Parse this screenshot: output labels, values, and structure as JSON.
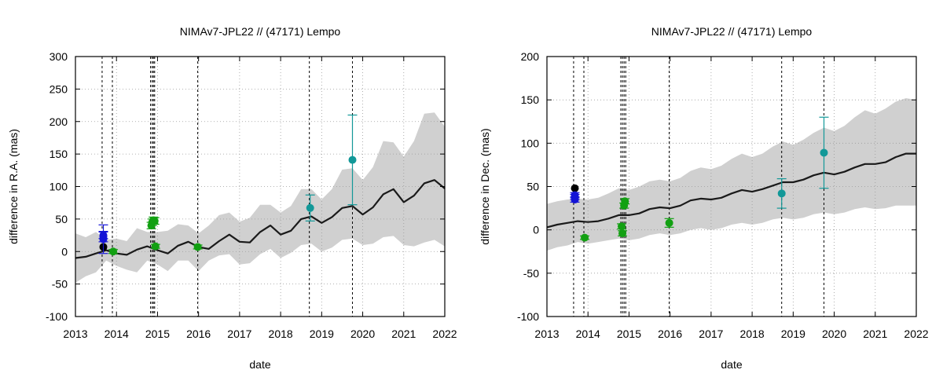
{
  "chart_data": [
    {
      "type": "scatter",
      "title": "NIMAv7-JPL22 // (47171) Lempo",
      "xlabel": "date",
      "ylabel": "difference in R.A. (mas)",
      "xlim": [
        2013,
        2022
      ],
      "ylim": [
        -100,
        300
      ],
      "xticks": [
        2013,
        2014,
        2015,
        2016,
        2017,
        2018,
        2019,
        2020,
        2021,
        2022
      ],
      "yticks": [
        -100,
        -50,
        0,
        50,
        100,
        150,
        200,
        250,
        300
      ],
      "grid": true,
      "vlines": [
        13.65,
        13.9,
        14.83,
        14.87,
        14.9,
        14.93,
        15.98,
        18.7,
        19.75
      ],
      "model": {
        "name": "model difference",
        "color": "#1a1a1a",
        "x": [
          2013.0,
          2013.25,
          2013.5,
          2013.75,
          2014.0,
          2014.25,
          2014.5,
          2014.75,
          2015.0,
          2015.25,
          2015.5,
          2015.75,
          2016.0,
          2016.25,
          2016.5,
          2016.75,
          2017.0,
          2017.25,
          2017.5,
          2017.75,
          2018.0,
          2018.25,
          2018.5,
          2018.75,
          2019.0,
          2019.25,
          2019.5,
          2019.75,
          2020.0,
          2020.25,
          2020.5,
          2020.75,
          2021.0,
          2021.25,
          2021.5,
          2021.75,
          2022.0
        ],
        "y": [
          -10,
          -8,
          -3,
          2,
          -3,
          -5,
          3,
          8,
          2,
          -3,
          9,
          15,
          7,
          4,
          16,
          26,
          15,
          14,
          30,
          40,
          26,
          32,
          50,
          54,
          44,
          53,
          67,
          70,
          57,
          68,
          88,
          96,
          76,
          86,
          105,
          110,
          97
        ]
      },
      "band": {
        "name": "uncertainty",
        "color": "#d0d0d0",
        "x": [
          2013.0,
          2013.25,
          2013.5,
          2013.75,
          2014.0,
          2014.25,
          2014.5,
          2014.75,
          2015.0,
          2015.25,
          2015.5,
          2015.75,
          2016.0,
          2016.25,
          2016.5,
          2016.75,
          2017.0,
          2017.25,
          2017.5,
          2017.75,
          2018.0,
          2018.25,
          2018.5,
          2018.75,
          2019.0,
          2019.25,
          2019.5,
          2019.75,
          2020.0,
          2020.25,
          2020.5,
          2020.75,
          2021.0,
          2021.25,
          2021.5,
          2021.75,
          2022.0
        ],
        "upper": [
          28,
          22,
          30,
          18,
          20,
          16,
          36,
          30,
          30,
          32,
          42,
          40,
          28,
          40,
          56,
          60,
          46,
          52,
          72,
          72,
          60,
          70,
          96,
          96,
          80,
          96,
          126,
          128,
          110,
          130,
          170,
          168,
          146,
          170,
          212,
          214,
          192
        ],
        "lower": [
          -48,
          -38,
          -32,
          -14,
          -22,
          -28,
          -32,
          -14,
          -20,
          -30,
          -14,
          -14,
          -30,
          -14,
          -6,
          -4,
          -20,
          -18,
          -4,
          4,
          -10,
          -2,
          10,
          12,
          0,
          6,
          18,
          20,
          10,
          12,
          22,
          24,
          10,
          8,
          14,
          18,
          8
        ]
      },
      "points": [
        {
          "label": "black",
          "color": "#000000",
          "x": 13.68,
          "y": 7,
          "err": 0
        },
        {
          "label": "blue",
          "color": "#1414d6",
          "x": 13.68,
          "y": 19,
          "err": 22
        },
        {
          "label": "blue",
          "color": "#1414d6",
          "x": 13.68,
          "y": 23,
          "err": 8
        },
        {
          "label": "blue",
          "color": "#1414d6",
          "x": 13.68,
          "y": 25,
          "err": 5
        },
        {
          "label": "green",
          "color": "#12a012",
          "x": 13.92,
          "y": 0,
          "err": 3
        },
        {
          "label": "green",
          "color": "#12a012",
          "x": 14.85,
          "y": 40,
          "err": 5
        },
        {
          "label": "green",
          "color": "#12a012",
          "x": 14.87,
          "y": 45,
          "err": 5
        },
        {
          "label": "green",
          "color": "#12a012",
          "x": 14.9,
          "y": 48,
          "err": 5
        },
        {
          "label": "green",
          "color": "#12a012",
          "x": 14.93,
          "y": 47,
          "err": 5
        },
        {
          "label": "green",
          "color": "#12a012",
          "x": 14.95,
          "y": 8,
          "err": 3
        },
        {
          "label": "green",
          "color": "#12a012",
          "x": 15.98,
          "y": 7,
          "err": 3
        },
        {
          "label": "teal",
          "color": "#129898",
          "x": 18.72,
          "y": 67,
          "err": 20
        },
        {
          "label": "teal",
          "color": "#129898",
          "x": 19.75,
          "y": 141,
          "err": 69
        }
      ]
    },
    {
      "type": "scatter",
      "title": "NIMAv7-JPL22 // (47171) Lempo",
      "xlabel": "date",
      "ylabel": "difference in Dec. (mas)",
      "xlim": [
        2013,
        2022
      ],
      "ylim": [
        -100,
        200
      ],
      "xticks": [
        2013,
        2014,
        2015,
        2016,
        2017,
        2018,
        2019,
        2020,
        2021,
        2022
      ],
      "yticks": [
        -100,
        -50,
        0,
        50,
        100,
        150,
        200
      ],
      "grid": true,
      "vlines": [
        13.65,
        13.9,
        14.8,
        14.84,
        14.88,
        14.92,
        15.98,
        18.72,
        19.75
      ],
      "model": {
        "name": "model difference",
        "color": "#1a1a1a",
        "x": [
          2013.0,
          2013.25,
          2013.5,
          2013.75,
          2014.0,
          2014.25,
          2014.5,
          2014.75,
          2015.0,
          2015.25,
          2015.5,
          2015.75,
          2016.0,
          2016.25,
          2016.5,
          2016.75,
          2017.0,
          2017.25,
          2017.5,
          2017.75,
          2018.0,
          2018.25,
          2018.5,
          2018.75,
          2019.0,
          2019.25,
          2019.5,
          2019.75,
          2020.0,
          2020.25,
          2020.5,
          2020.75,
          2021.0,
          2021.25,
          2021.5,
          2021.75,
          2022.0
        ],
        "y": [
          3,
          6,
          8,
          10,
          9,
          10,
          13,
          17,
          17,
          19,
          24,
          26,
          25,
          28,
          34,
          36,
          35,
          37,
          42,
          46,
          44,
          47,
          51,
          55,
          55,
          58,
          63,
          66,
          64,
          67,
          72,
          76,
          76,
          78,
          84,
          88,
          88
        ]
      },
      "band": {
        "name": "uncertainty",
        "color": "#d0d0d0",
        "x": [
          2013.0,
          2013.25,
          2013.5,
          2013.75,
          2014.0,
          2014.25,
          2014.5,
          2014.75,
          2015.0,
          2015.25,
          2015.5,
          2015.75,
          2016.0,
          2016.25,
          2016.5,
          2016.75,
          2017.0,
          2017.25,
          2017.5,
          2017.75,
          2018.0,
          2018.25,
          2018.5,
          2018.75,
          2019.0,
          2019.25,
          2019.5,
          2019.75,
          2020.0,
          2020.25,
          2020.5,
          2020.75,
          2021.0,
          2021.25,
          2021.5,
          2021.75,
          2022.0
        ],
        "upper": [
          30,
          33,
          35,
          36,
          35,
          37,
          42,
          48,
          46,
          50,
          56,
          58,
          56,
          60,
          68,
          72,
          70,
          74,
          82,
          88,
          84,
          88,
          96,
          102,
          98,
          104,
          112,
          118,
          114,
          120,
          130,
          138,
          134,
          140,
          148,
          152,
          150
        ],
        "lower": [
          -24,
          -20,
          -18,
          -14,
          -16,
          -14,
          -12,
          -10,
          -12,
          -10,
          -6,
          -4,
          -6,
          -4,
          0,
          2,
          0,
          2,
          6,
          8,
          6,
          8,
          12,
          14,
          12,
          14,
          18,
          20,
          18,
          20,
          24,
          26,
          24,
          25,
          28,
          28,
          28
        ]
      },
      "points": [
        {
          "label": "black",
          "color": "#000000",
          "x": 13.68,
          "y": 48,
          "err": 0
        },
        {
          "label": "blue",
          "color": "#1414d6",
          "x": 13.68,
          "y": 35,
          "err": 3
        },
        {
          "label": "blue",
          "color": "#1414d6",
          "x": 13.68,
          "y": 38,
          "err": 3
        },
        {
          "label": "blue",
          "color": "#1414d6",
          "x": 13.68,
          "y": 40,
          "err": 3
        },
        {
          "label": "green",
          "color": "#12a012",
          "x": 13.92,
          "y": -9,
          "err": 2
        },
        {
          "label": "green",
          "color": "#12a012",
          "x": 14.82,
          "y": 4,
          "err": 3
        },
        {
          "label": "green",
          "color": "#12a012",
          "x": 14.84,
          "y": -4,
          "err": 3
        },
        {
          "label": "green",
          "color": "#12a012",
          "x": 14.88,
          "y": 28,
          "err": 3
        },
        {
          "label": "green",
          "color": "#12a012",
          "x": 14.9,
          "y": 33,
          "err": 3
        },
        {
          "label": "green",
          "color": "#12a012",
          "x": 15.98,
          "y": 8,
          "err": 5
        },
        {
          "label": "teal",
          "color": "#129898",
          "x": 18.72,
          "y": 42,
          "err": 17
        },
        {
          "label": "teal",
          "color": "#129898",
          "x": 19.75,
          "y": 89,
          "err": 41
        }
      ]
    }
  ]
}
